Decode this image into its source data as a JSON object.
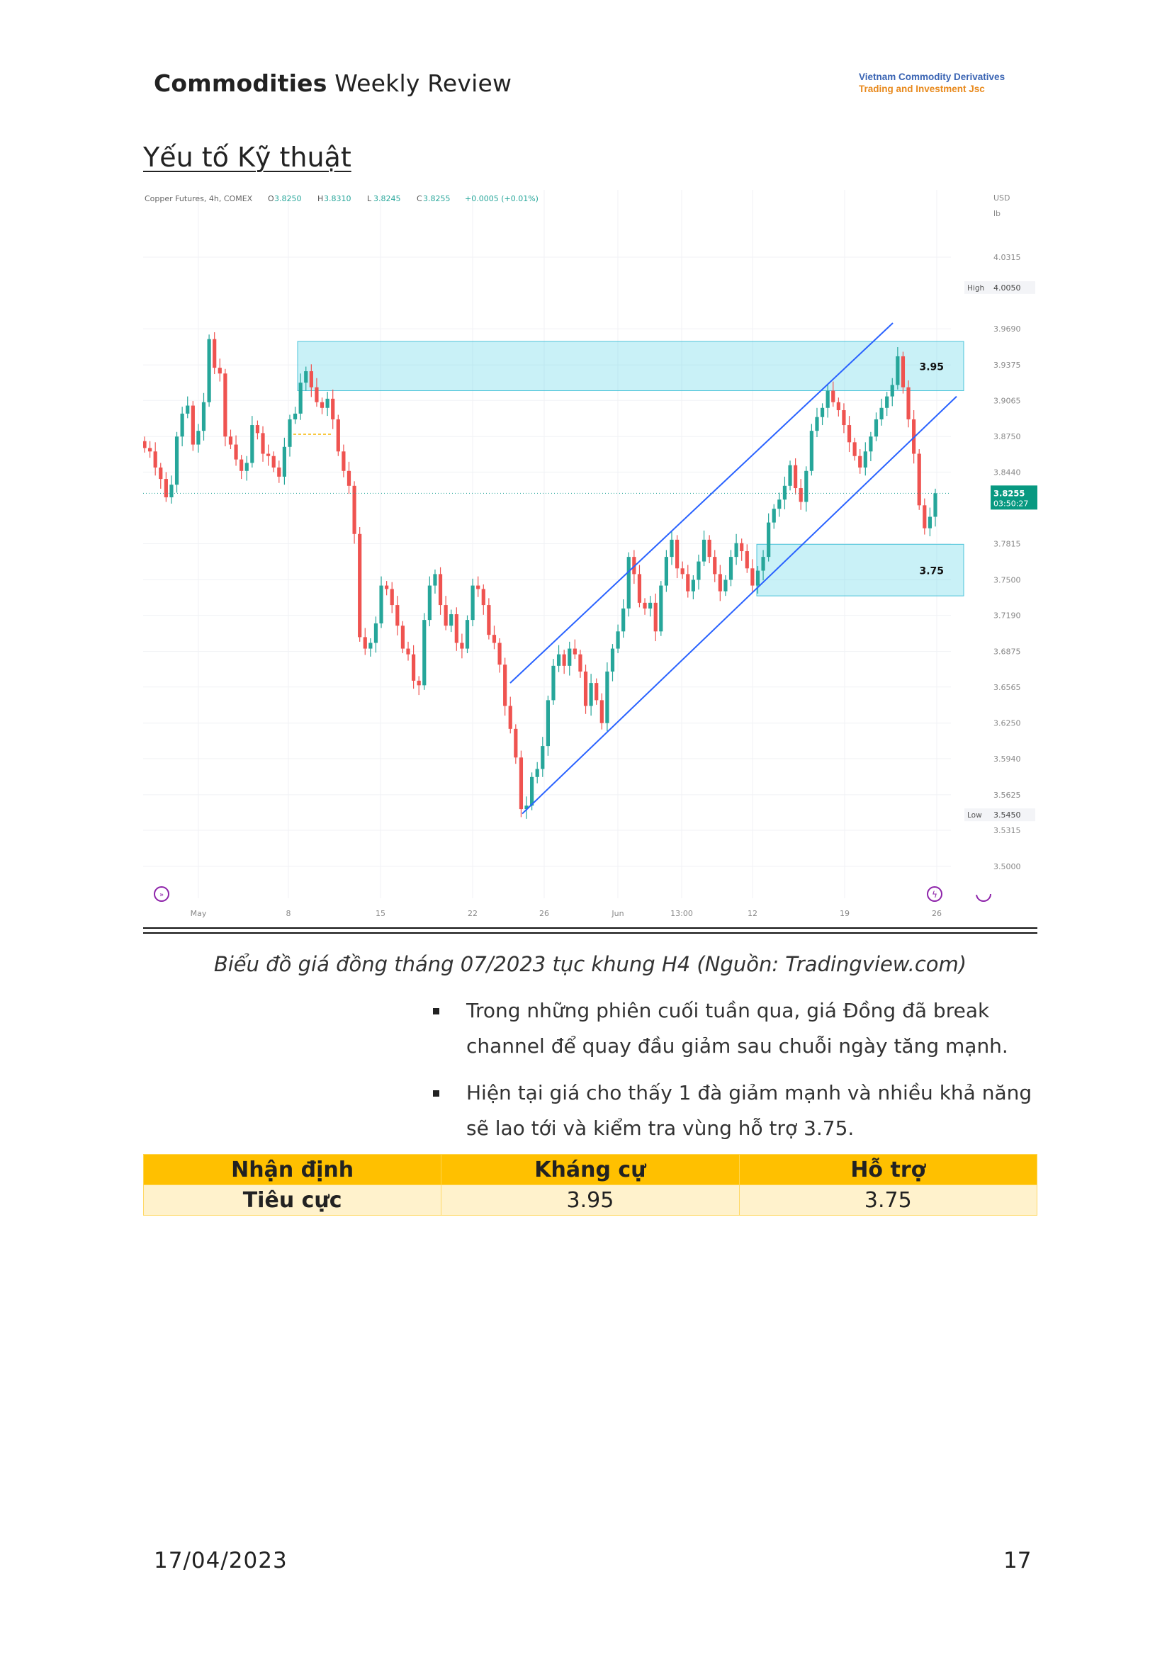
{
  "header": {
    "title_bold": "Commodities",
    "title_rest": " Weekly Review",
    "company_line1": "Vietnam Commodity Derivatives",
    "company_line2": "Trading and Investment Jsc"
  },
  "section_title": "Yếu tố Kỹ thuật",
  "chart_data": {
    "type": "candlestick",
    "symbol_line": "Copper Futures, 4h, COMEX",
    "ohlc": {
      "o_label": "O",
      "o": "3.8250",
      "h_label": "H",
      "h": "3.8310",
      "l_label": "L",
      "l": "3.8245",
      "c_label": "C",
      "c": "3.8255",
      "change": "+0.0005 (+0.01%)"
    },
    "currency": "USD",
    "unit": "lb",
    "y_ticks": [
      "4.0315",
      "3.9690",
      "3.9375",
      "3.9065",
      "3.8750",
      "3.8440",
      "3.7815",
      "3.7500",
      "3.7190",
      "3.6875",
      "3.6565",
      "3.6250",
      "3.5940",
      "3.5625",
      "3.5315",
      "3.5000"
    ],
    "y_tick_values": [
      4.0315,
      3.969,
      3.9375,
      3.9065,
      3.875,
      3.844,
      3.7815,
      3.75,
      3.719,
      3.6875,
      3.6565,
      3.625,
      3.594,
      3.5625,
      3.5315,
      3.5
    ],
    "x_ticks": [
      "May",
      "8",
      "15",
      "22",
      "26",
      "Jun",
      "13:00",
      "12",
      "19",
      "26"
    ],
    "high_label": "High",
    "high_value": "4.0050",
    "low_label": "Low",
    "low_value": "3.5450",
    "last_price": "3.8255",
    "countdown": "03:50:27",
    "resistance_zone": {
      "label": "3.95",
      "from": 3.915,
      "to": 3.958
    },
    "support_zone": {
      "label": "3.75",
      "from": 3.736,
      "to": 3.781
    },
    "close_path": [
      3.865,
      3.862,
      3.848,
      3.838,
      3.822,
      3.833,
      3.875,
      3.895,
      3.902,
      3.868,
      3.88,
      3.905,
      3.96,
      3.935,
      3.93,
      3.875,
      3.868,
      3.855,
      3.845,
      3.852,
      3.885,
      3.878,
      3.86,
      3.858,
      3.848,
      3.84,
      3.866,
      3.89,
      3.895,
      3.922,
      3.932,
      3.918,
      3.905,
      3.9,
      3.908,
      3.89,
      3.862,
      3.845,
      3.832,
      3.79,
      3.7,
      3.69,
      3.695,
      3.712,
      3.745,
      3.742,
      3.728,
      3.71,
      3.69,
      3.685,
      3.662,
      3.658,
      3.715,
      3.745,
      3.755,
      3.728,
      3.71,
      3.72,
      3.695,
      3.69,
      3.715,
      3.745,
      3.742,
      3.728,
      3.702,
      3.695,
      3.676,
      3.64,
      3.62,
      3.595,
      3.55,
      3.553,
      3.578,
      3.585,
      3.605,
      3.645,
      3.675,
      3.685,
      3.675,
      3.69,
      3.685,
      3.67,
      3.64,
      3.66,
      3.645,
      3.625,
      3.67,
      3.69,
      3.705,
      3.725,
      3.77,
      3.755,
      3.73,
      3.725,
      3.73,
      3.705,
      3.745,
      3.77,
      3.785,
      3.76,
      3.755,
      3.74,
      3.75,
      3.766,
      3.785,
      3.77,
      3.755,
      3.74,
      3.75,
      3.77,
      3.782,
      3.775,
      3.76,
      3.745,
      3.758,
      3.77,
      3.8,
      3.812,
      3.82,
      3.832,
      3.85,
      3.83,
      3.818,
      3.845,
      3.88,
      3.892,
      3.9,
      3.915,
      3.905,
      3.898,
      3.885,
      3.87,
      3.858,
      3.848,
      3.862,
      3.875,
      3.89,
      3.9,
      3.91,
      3.92,
      3.945,
      3.918,
      3.89,
      3.86,
      3.815,
      3.795,
      3.805,
      3.8255
    ]
  },
  "caption": "Biểu đồ giá đồng tháng 07/2023 tục khung H4  (Nguồn: Tradingview.com)",
  "bullets": [
    "Trong những phiên cuối tuần qua, giá Đồng đã break channel để quay đầu giảm sau chuỗi ngày tăng mạnh.",
    "Hiện tại giá cho thấy 1 đà giảm mạnh và nhiều khả năng sẽ lao tới và kiểm tra vùng hỗ trợ 3.75."
  ],
  "table": {
    "headers": [
      "Nhận định",
      "Kháng cự",
      "Hỗ trợ"
    ],
    "row": [
      "Tiêu cực",
      "3.95",
      "3.75"
    ]
  },
  "footer": {
    "date": "17/04/2023",
    "page": "17"
  }
}
